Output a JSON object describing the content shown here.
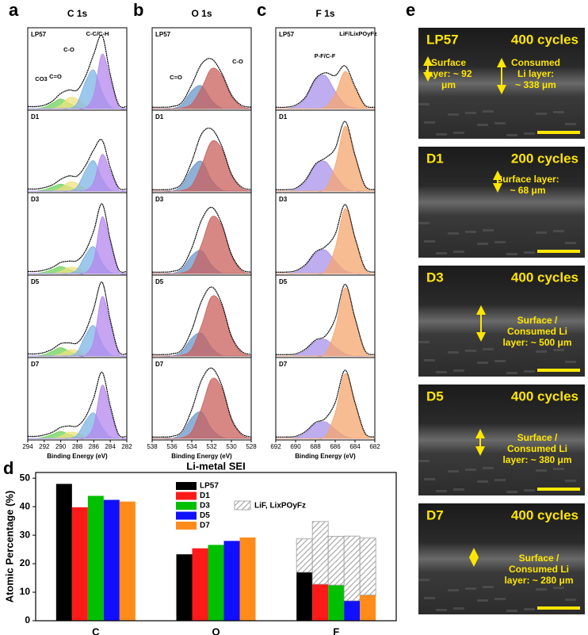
{
  "chart_data": [
    {
      "type": "spectra",
      "panel": "a",
      "title": "C 1s",
      "xlabel": "Binding Energy (eV)",
      "x": [
        294,
        293,
        292,
        291,
        290,
        289,
        288,
        287,
        286,
        285,
        284,
        283,
        282
      ],
      "xlim": [
        294,
        282
      ],
      "xticks": [
        294,
        292,
        290,
        288,
        286,
        284,
        282
      ],
      "ylim": [
        0,
        115
      ],
      "component_colors": [
        "#6fd35a",
        "#eee27e",
        "#7db4e6",
        "#b487ee"
      ],
      "envelope_color": "#000000",
      "annotations": [
        "CO3",
        "C=O",
        "C-O",
        "C-C/C-H"
      ],
      "spectra": [
        {
          "name": "LP57",
          "envelope": [
            3,
            3,
            5,
            11,
            22,
            27,
            27,
            47,
            79,
            106,
            49,
            6,
            3
          ],
          "components": [
            [
              0,
              0,
              2,
              8,
              14,
              8,
              2,
              0,
              0,
              0,
              0,
              0,
              0
            ],
            [
              0,
              0,
              0,
              0,
              5,
              16,
              14,
              4,
              0,
              0,
              0,
              0,
              0
            ],
            [
              0,
              0,
              0,
              0,
              0,
              0,
              8,
              39,
              56,
              24,
              3,
              0,
              0
            ],
            [
              0,
              0,
              0,
              0,
              0,
              0,
              0,
              1,
              20,
              79,
              43,
              3,
              0
            ]
          ]
        },
        {
          "name": "D1",
          "envelope": [
            3,
            3,
            5,
            9,
            17,
            22,
            22,
            37,
            60,
            74,
            34,
            5,
            3
          ],
          "components": [
            [
              0,
              0,
              2,
              6,
              10,
              6,
              2,
              0,
              0,
              0,
              0,
              0,
              0
            ],
            [
              0,
              0,
              0,
              0,
              4,
              13,
              11,
              3,
              0,
              0,
              0,
              0,
              0
            ],
            [
              0,
              0,
              0,
              0,
              0,
              0,
              6,
              30,
              44,
              18,
              2,
              0,
              0
            ],
            [
              0,
              0,
              0,
              0,
              0,
              0,
              0,
              1,
              13,
              53,
              29,
              2,
              0
            ]
          ]
        },
        {
          "name": "D3",
          "envelope": [
            3,
            3,
            5,
            9,
            16,
            18,
            19,
            33,
            62,
            101,
            49,
            6,
            3
          ],
          "components": [
            [
              0,
              0,
              2,
              6,
              10,
              6,
              2,
              0,
              0,
              0,
              0,
              0,
              0
            ],
            [
              0,
              0,
              0,
              0,
              3,
              9,
              8,
              2,
              0,
              0,
              0,
              0,
              0
            ],
            [
              0,
              0,
              0,
              0,
              0,
              0,
              6,
              27,
              39,
              16,
              2,
              0,
              0
            ],
            [
              0,
              0,
              0,
              0,
              0,
              0,
              0,
              1,
              20,
              82,
              44,
              3,
              0
            ]
          ]
        },
        {
          "name": "D5",
          "envelope": [
            3,
            3,
            5,
            10,
            18,
            19,
            19,
            36,
            69,
            107,
            52,
            7,
            3
          ],
          "components": [
            [
              0,
              0,
              2,
              7,
              12,
              7,
              2,
              0,
              0,
              0,
              0,
              0,
              0
            ],
            [
              0,
              0,
              0,
              0,
              3,
              9,
              8,
              2,
              0,
              0,
              0,
              0,
              0
            ],
            [
              0,
              0,
              0,
              0,
              0,
              0,
              6,
              30,
              44,
              18,
              2,
              0,
              0
            ],
            [
              0,
              0,
              0,
              0,
              0,
              0,
              0,
              1,
              22,
              86,
              47,
              4,
              0
            ]
          ]
        },
        {
          "name": "D7",
          "envelope": [
            3,
            3,
            5,
            9,
            16,
            18,
            18,
            31,
            59,
            96,
            47,
            6,
            3
          ],
          "components": [
            [
              0,
              0,
              2,
              6,
              10,
              6,
              2,
              0,
              0,
              0,
              0,
              0,
              0
            ],
            [
              0,
              0,
              0,
              0,
              3,
              9,
              8,
              2,
              0,
              0,
              0,
              0,
              0
            ],
            [
              0,
              0,
              0,
              0,
              0,
              0,
              5,
              25,
              37,
              16,
              2,
              0,
              0
            ],
            [
              0,
              0,
              0,
              0,
              0,
              0,
              0,
              1,
              19,
              77,
              42,
              3,
              0
            ]
          ]
        }
      ]
    },
    {
      "type": "spectra",
      "panel": "b",
      "title": "O 1s",
      "xlabel": "Binding Energy (eV)",
      "x": [
        538,
        537,
        536,
        535,
        534,
        533,
        532,
        531,
        530,
        529,
        528
      ],
      "xlim": [
        538,
        528
      ],
      "xticks": [
        538,
        536,
        534,
        532,
        530,
        528
      ],
      "ylim": [
        0,
        115
      ],
      "component_colors": [
        "#6a95c9",
        "#c9605c"
      ],
      "envelope_color": "#000000",
      "annotations": [
        "C=O",
        "C-O"
      ],
      "spectra": [
        {
          "name": "LP57",
          "envelope": [
            2,
            2,
            3,
            9,
            35,
            65,
            72,
            52,
            20,
            5,
            2
          ],
          "components": [
            [
              0,
              0,
              0,
              6,
              26,
              33,
              12,
              1,
              0,
              0,
              0
            ],
            [
              0,
              0,
              0,
              1,
              7,
              30,
              58,
              49,
              18,
              3,
              0
            ]
          ]
        },
        {
          "name": "D1",
          "envelope": [
            2,
            2,
            3,
            11,
            43,
            83,
            90,
            66,
            25,
            6,
            2
          ],
          "components": [
            [
              0,
              0,
              0,
              8,
              33,
              43,
              16,
              2,
              0,
              0,
              0
            ],
            [
              0,
              0,
              0,
              1,
              8,
              38,
              72,
              62,
              23,
              4,
              0
            ]
          ]
        },
        {
          "name": "D3",
          "envelope": [
            2,
            2,
            3,
            9,
            37,
            78,
            96,
            73,
            28,
            6,
            2
          ],
          "components": [
            [
              0,
              0,
              0,
              6,
              26,
              33,
              12,
              1,
              0,
              0,
              0
            ],
            [
              0,
              0,
              0,
              1,
              9,
              43,
              82,
              70,
              26,
              4,
              0
            ]
          ]
        },
        {
          "name": "D5",
          "envelope": [
            2,
            2,
            3,
            9,
            38,
            80,
            100,
            77,
            29,
            7,
            2
          ],
          "components": [
            [
              0,
              0,
              0,
              6,
              26,
              33,
              12,
              1,
              0,
              0,
              0
            ],
            [
              0,
              0,
              0,
              1,
              10,
              45,
              86,
              74,
              27,
              5,
              0
            ]
          ]
        },
        {
          "name": "D7",
          "envelope": [
            2,
            2,
            3,
            10,
            42,
            85,
            102,
            78,
            29,
            7,
            2
          ],
          "components": [
            [
              0,
              0,
              0,
              7,
              30,
              38,
              14,
              2,
              0,
              0,
              0
            ],
            [
              0,
              0,
              0,
              1,
              10,
              45,
              86,
              74,
              27,
              5,
              0
            ]
          ]
        }
      ]
    },
    {
      "type": "spectra",
      "panel": "c",
      "title": "F 1s",
      "xlabel": "Binding Energy (eV)",
      "x": [
        692,
        691,
        690,
        689,
        688,
        687,
        686,
        685,
        684,
        683,
        682
      ],
      "xlim": [
        692,
        682
      ],
      "xticks": [
        692,
        690,
        688,
        686,
        684,
        682
      ],
      "ylim": [
        0,
        115
      ],
      "component_colors": [
        "#a892ea",
        "#f6a56e"
      ],
      "envelope_color": "#000000",
      "annotations": [
        "P-F/C-F",
        "LiF/LixPOyFz"
      ],
      "spectra": [
        {
          "name": "LP57",
          "envelope": [
            2,
            2,
            5,
            17,
            43,
            52,
            48,
            62,
            32,
            5,
            2
          ],
          "components": [
            [
              0,
              0,
              3,
              15,
              41,
              48,
              25,
              6,
              1,
              0,
              0
            ],
            [
              0,
              0,
              0,
              0,
              0,
              2,
              21,
              54,
              29,
              3,
              0
            ]
          ]
        },
        {
          "name": "D1",
          "envelope": [
            2,
            2,
            4,
            16,
            39,
            48,
            62,
            101,
            52,
            8,
            2
          ],
          "components": [
            [
              0,
              0,
              2,
              14,
              37,
              43,
              23,
              5,
              0,
              0,
              0
            ],
            [
              0,
              0,
              0,
              0,
              0,
              3,
              37,
              94,
              50,
              6,
              0
            ]
          ]
        },
        {
          "name": "D3",
          "envelope": [
            2,
            2,
            4,
            13,
            31,
            39,
            57,
            100,
            52,
            8,
            2
          ],
          "components": [
            [
              0,
              0,
              2,
              11,
              29,
              34,
              18,
              4,
              0,
              0,
              0
            ],
            [
              0,
              0,
              0,
              0,
              0,
              3,
              37,
              94,
              50,
              6,
              0
            ]
          ]
        },
        {
          "name": "D5",
          "envelope": [
            2,
            2,
            3,
            10,
            23,
            29,
            54,
            104,
            55,
            8,
            2
          ],
          "components": [
            [
              0,
              0,
              1,
              8,
              21,
              24,
              13,
              3,
              0,
              0,
              0
            ],
            [
              0,
              0,
              0,
              0,
              0,
              3,
              39,
              99,
              53,
              6,
              0
            ]
          ]
        },
        {
          "name": "D7",
          "envelope": [
            2,
            2,
            3,
            10,
            23,
            29,
            52,
            99,
            52,
            8,
            2
          ],
          "components": [
            [
              0,
              0,
              1,
              8,
              21,
              24,
              13,
              3,
              0,
              0,
              0
            ],
            [
              0,
              0,
              0,
              0,
              0,
              3,
              37,
              94,
              50,
              6,
              0
            ]
          ]
        }
      ]
    },
    {
      "type": "bar",
      "panel": "d",
      "title": "Li-metal SEI",
      "ylabel": "Atomic Percentage (%)",
      "categories": [
        "C",
        "O",
        "F"
      ],
      "ylim": [
        0,
        52
      ],
      "yticks": [
        0,
        10,
        20,
        30,
        40,
        50
      ],
      "hatched_name": "LiF, LixPOyFz",
      "hatched_color": "#9a9a9a",
      "series": [
        {
          "name": "LP57",
          "color": "#000000",
          "values": [
            48,
            23.3,
            17
          ],
          "hatched": [
            null,
            null,
            11.7
          ]
        },
        {
          "name": "D1",
          "color": "#ff1a1a",
          "values": [
            39.8,
            25.4,
            12.8
          ],
          "hatched": [
            null,
            null,
            22
          ]
        },
        {
          "name": "D3",
          "color": "#00c000",
          "values": [
            43.8,
            26.6,
            12.5
          ],
          "hatched": [
            null,
            null,
            17.1
          ]
        },
        {
          "name": "D5",
          "color": "#1010ff",
          "values": [
            42.4,
            28,
            7
          ],
          "hatched": [
            null,
            null,
            22.7
          ]
        },
        {
          "name": "D7",
          "color": "#ff8c1a",
          "values": [
            41.8,
            29.2,
            9
          ],
          "hatched": [
            null,
            null,
            20
          ]
        }
      ]
    }
  ],
  "sem_panel": {
    "label": "e",
    "images": [
      {
        "sample": "LP57",
        "cycles": "400 cycles",
        "notes": [
          [
            "Surface",
            "layer: ~ 92",
            "μm"
          ],
          [
            "Consumed",
            "Li layer:",
            "~ 338 μm"
          ]
        ]
      },
      {
        "sample": "D1",
        "cycles": "200 cycles",
        "notes": [
          [
            "Surface layer:",
            "~ 68 μm"
          ]
        ]
      },
      {
        "sample": "D3",
        "cycles": "400 cycles",
        "notes": [
          [
            "Surface /",
            "Consumed Li",
            "layer: ~ 500 μm"
          ]
        ]
      },
      {
        "sample": "D5",
        "cycles": "400 cycles",
        "notes": [
          [
            "Surface /",
            "Consumed Li",
            "layer: ~ 380 μm"
          ]
        ]
      },
      {
        "sample": "D7",
        "cycles": "400 cycles",
        "notes": [
          [
            "Surface /",
            "Consumed Li",
            "layer: ~ 280 μm"
          ]
        ]
      }
    ]
  }
}
